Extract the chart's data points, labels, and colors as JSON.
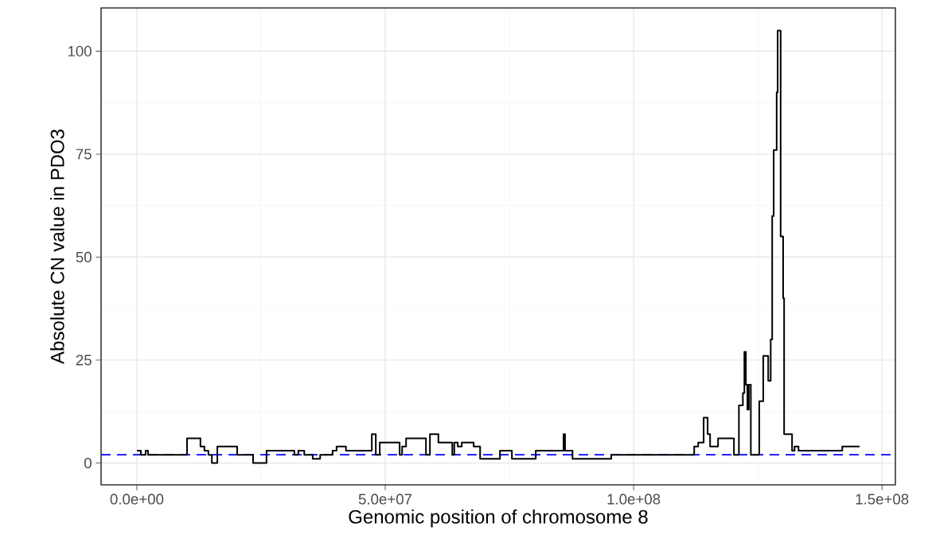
{
  "chart_data": {
    "type": "step",
    "xlabel": "Genomic position of chromosome 8",
    "ylabel": "Absolute CN value in PDO3",
    "x": [
      0,
      800000,
      1760000,
      2240000,
      10100000,
      12800000,
      13600000,
      14400000,
      15100000,
      16200000,
      20200000,
      23400000,
      26100000,
      31700000,
      32500000,
      33700000,
      35400000,
      36900000,
      39400000,
      40200000,
      42100000,
      47300000,
      48100000,
      48900000,
      52900000,
      53400000,
      54200000,
      58200000,
      59000000,
      60700000,
      63500000,
      63900000,
      64600000,
      65400000,
      67800000,
      69100000,
      73100000,
      75500000,
      80300000,
      85900000,
      86200000,
      87700000,
      95500000,
      112200000,
      113000000,
      114100000,
      114900000,
      115400000,
      117000000,
      120200000,
      121200000,
      122000000,
      122300000,
      122600000,
      122900000,
      123200000,
      123600000,
      125300000,
      126100000,
      127100000,
      127600000,
      127900000,
      128200000,
      128800000,
      129000000,
      129600000,
      130100000,
      130300000,
      131900000,
      132400000,
      133200000,
      142000000,
      145500000
    ],
    "series": [
      {
        "color": "#000000",
        "line_style": "solid",
        "values": [
          3,
          2,
          3,
          2,
          6,
          4,
          3,
          2,
          0,
          4,
          2,
          0,
          3,
          2,
          3,
          2,
          1,
          2,
          3,
          4,
          3,
          7,
          2,
          5,
          2,
          4,
          6,
          2,
          7,
          5,
          2,
          5,
          4,
          5,
          4,
          1,
          3,
          1,
          3,
          7,
          3,
          1,
          2,
          4,
          5,
          11,
          7,
          4,
          6,
          2,
          14,
          17,
          27,
          19,
          13,
          19,
          2,
          15,
          26,
          20,
          30,
          60,
          76,
          90,
          105,
          55,
          40,
          7,
          3,
          4,
          3,
          4,
          4
        ]
      }
    ],
    "xlim": [
      -7200000,
      152700000
    ],
    "ylim": [
      -5.3,
      110.5
    ],
    "xticks": [
      {
        "value": 0,
        "label": "0.0e+00"
      },
      {
        "value": 50000000,
        "label": "5.0e+07"
      },
      {
        "value": 100000000,
        "label": "1.0e+08"
      },
      {
        "value": 150000000,
        "label": "1.5e+08"
      }
    ],
    "yticks": [
      0,
      25,
      50,
      75,
      100
    ],
    "ref_lines": [
      {
        "axis": "y",
        "value": 2,
        "color": "#0000ff",
        "line_style": "dashed"
      }
    ],
    "grid": true
  }
}
